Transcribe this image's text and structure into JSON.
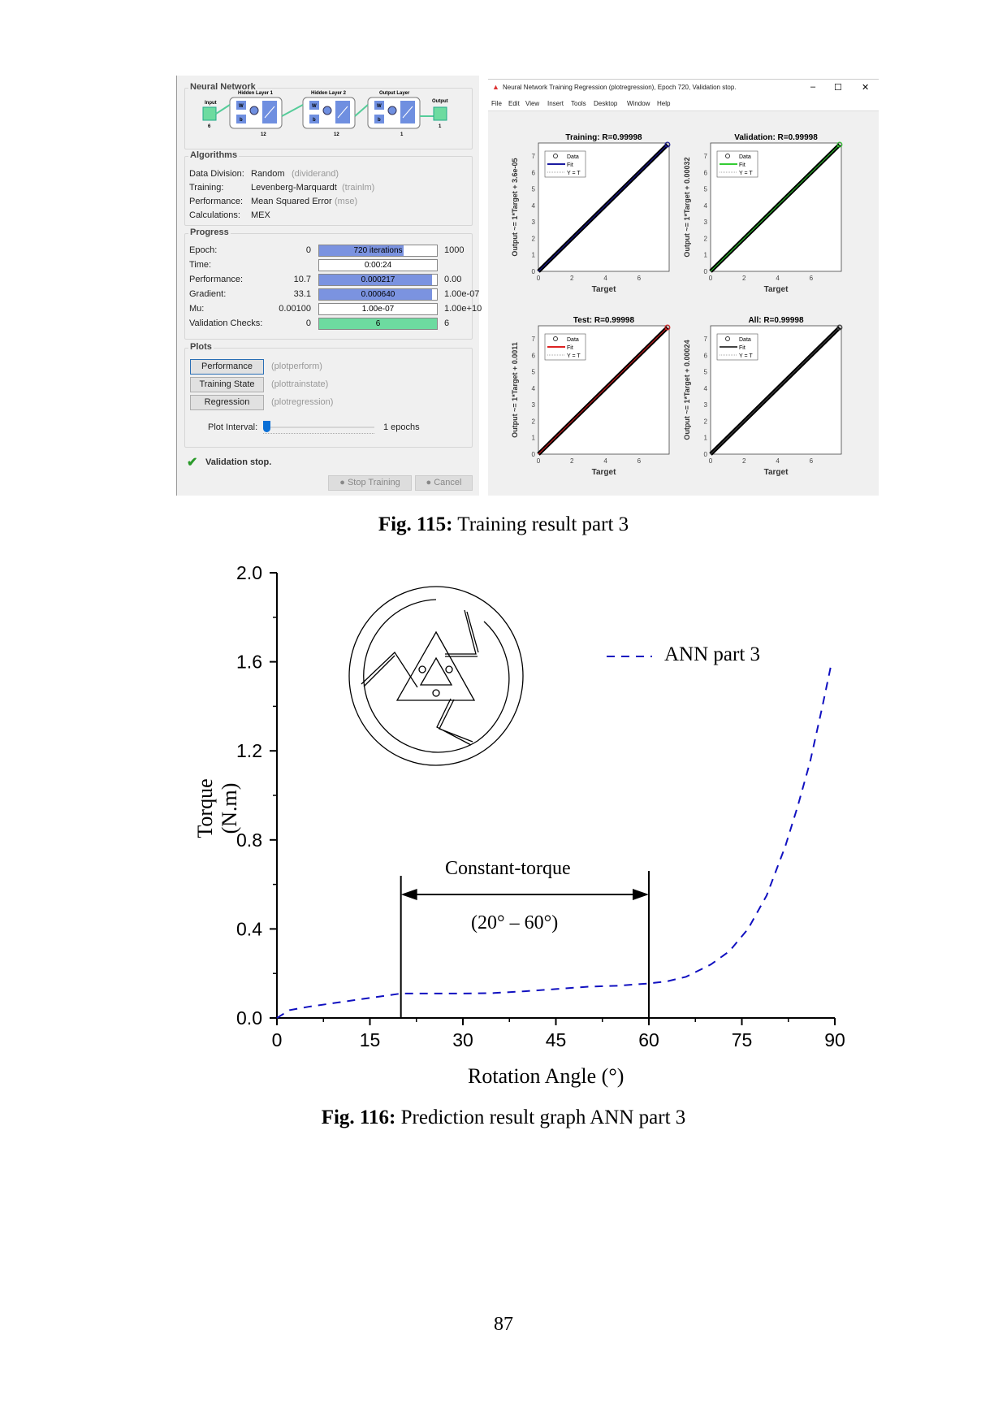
{
  "nntool": {
    "network_title": "Neural Network",
    "diagram": {
      "input": "Input",
      "input_n": "6",
      "layers": [
        {
          "label": "Hidden Layer 1",
          "n": "12"
        },
        {
          "label": "Hidden Layer 2",
          "n": "12"
        },
        {
          "label": "Output Layer",
          "n": "1"
        }
      ],
      "output": "Output",
      "output_n": "1",
      "w": "W",
      "b": "b"
    },
    "algorithms_title": "Algorithms",
    "algorithms": [
      {
        "label": "Data Division:",
        "value": "Random",
        "fn": "(dividerand)"
      },
      {
        "label": "Training:",
        "value": "Levenberg-Marquardt",
        "fn": "(trainlm)"
      },
      {
        "label": "Performance:",
        "value": "Mean Squared Error",
        "fn": "(mse)"
      },
      {
        "label": "Calculations:",
        "value": "MEX",
        "fn": ""
      }
    ],
    "progress_title": "Progress",
    "progress": [
      {
        "label": "Epoch:",
        "start": "0",
        "value": "720 iterations",
        "end": "1000",
        "fill": 72,
        "color": "#7b93e0"
      },
      {
        "label": "Time:",
        "start": "",
        "value": "0:00:24",
        "end": "",
        "fill": 0,
        "color": "#7b93e0"
      },
      {
        "label": "Performance:",
        "start": "10.7",
        "value": "0.000217",
        "end": "0.00",
        "fill": 96,
        "color": "#7b93e0"
      },
      {
        "label": "Gradient:",
        "start": "33.1",
        "value": "0.000640",
        "end": "1.00e-07",
        "fill": 96,
        "color": "#7b93e0"
      },
      {
        "label": "Mu:",
        "start": "0.00100",
        "value": "1.00e-07",
        "end": "1.00e+10",
        "fill": 0,
        "color": "#7b93e0"
      },
      {
        "label": "Validation Checks:",
        "start": "0",
        "value": "6",
        "end": "6",
        "fill": 100,
        "color": "#6ddba0"
      }
    ],
    "plots_title": "Plots",
    "plots": [
      {
        "label": "Performance",
        "fn": "(plotperform)"
      },
      {
        "label": "Training State",
        "fn": "(plottrainstate)"
      },
      {
        "label": "Regression",
        "fn": "(plotregression)"
      }
    ],
    "plot_interval_label": "Plot Interval:",
    "plot_interval_value": "1 epochs",
    "status": "Validation stop.",
    "stop_training": "Stop Training",
    "cancel": "Cancel"
  },
  "regression_window": {
    "title": "Neural Network Training Regression (plotregression), Epoch 720, Validation stop.",
    "menu": [
      "File",
      "Edit",
      "View",
      "Insert",
      "Tools",
      "Desktop",
      "Window",
      "Help"
    ],
    "plots": [
      {
        "title": "Training: R=0.99998",
        "ylabel": "Output ~= 1*Target + 3.6e-05",
        "xlabel": "Target",
        "fit_color": "#1a1aa0",
        "legend": [
          "Data",
          "Fit",
          "Y = T"
        ]
      },
      {
        "title": "Validation: R=0.99998",
        "ylabel": "Output ~= 1*Target + 0.00032",
        "xlabel": "Target",
        "fit_color": "#33cc33",
        "legend": [
          "Data",
          "Fit",
          "Y = T"
        ]
      },
      {
        "title": "Test: R=0.99998",
        "ylabel": "Output ~= 1*Target + 0.0011",
        "xlabel": "Target",
        "fit_color": "#dd2222",
        "legend": [
          "Data",
          "Fit",
          "Y = T"
        ]
      },
      {
        "title": "All: R=0.99998",
        "ylabel": "Output ~= 1*Target + 0.00024",
        "xlabel": "Target",
        "fit_color": "#444444",
        "legend": [
          "Data",
          "Fit",
          "Y = T"
        ]
      }
    ],
    "xticks": [
      "0",
      "2",
      "4",
      "6"
    ],
    "yticks": [
      "0",
      "1",
      "2",
      "3",
      "4",
      "5",
      "6",
      "7"
    ]
  },
  "fig115_caption": {
    "bold": "Fig. 115:",
    "text": " Training result part 3"
  },
  "chart_data": {
    "type": "line",
    "xlabel": "Rotation Angle (°)",
    "ylabel": "Torque (N.m)",
    "xlim": [
      0,
      90
    ],
    "ylim": [
      0,
      2.0
    ],
    "xticks": [
      "0",
      "15",
      "30",
      "45",
      "60",
      "75",
      "90"
    ],
    "yticks": [
      "0.0",
      "0.4",
      "0.8",
      "1.2",
      "1.6",
      "2.0"
    ],
    "legend_position": "top-right",
    "series": [
      {
        "name": "ANN part 3",
        "color": "#1010c0",
        "style": "dashed",
        "x": [
          0,
          2,
          5,
          10,
          15,
          20,
          25,
          30,
          35,
          40,
          45,
          50,
          55,
          60,
          63,
          66,
          70,
          73,
          76,
          79,
          82,
          84,
          86,
          88,
          89.5
        ],
        "y": [
          0,
          0.035,
          0.05,
          0.07,
          0.09,
          0.11,
          0.11,
          0.11,
          0.112,
          0.12,
          0.13,
          0.14,
          0.145,
          0.155,
          0.165,
          0.185,
          0.24,
          0.3,
          0.4,
          0.55,
          0.77,
          0.95,
          1.15,
          1.4,
          1.6
        ]
      }
    ],
    "annotations": {
      "label": "Constant-torque",
      "range": "(20° – 60°)",
      "x_start": 20,
      "x_end": 60
    }
  },
  "fig116_caption": {
    "bold": "Fig. 116:",
    "text": " Prediction result graph ANN part 3"
  },
  "page_number": "87"
}
